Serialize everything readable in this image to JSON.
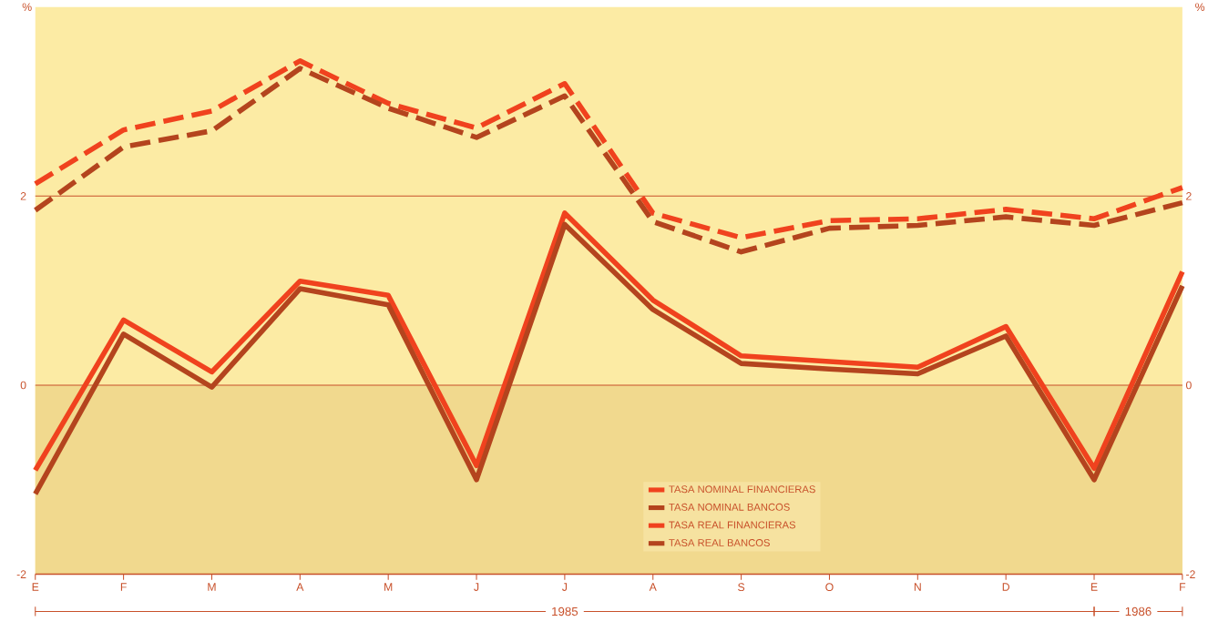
{
  "chart_data": {
    "type": "line",
    "ylabel": "%",
    "y2label": "%",
    "categories": [
      "E",
      "F",
      "M",
      "A",
      "M",
      "J",
      "J",
      "A",
      "S",
      "O",
      "N",
      "D",
      "E",
      "F"
    ],
    "series": [
      {
        "name": "TASA NOMINAL FINANCIERAS",
        "color": "#f0421e",
        "line_style": "dashed",
        "values": [
          2.13,
          2.7,
          2.9,
          3.43,
          2.98,
          2.72,
          3.19,
          1.82,
          1.56,
          1.74,
          1.76,
          1.86,
          1.76,
          2.09
        ]
      },
      {
        "name": "TASA NOMINAL BANCOS",
        "color": "#b4441e",
        "line_style": "dashed",
        "values": [
          1.85,
          2.52,
          2.69,
          3.35,
          2.93,
          2.62,
          3.06,
          1.73,
          1.41,
          1.66,
          1.69,
          1.78,
          1.69,
          1.93
        ]
      },
      {
        "name": "TASA REAL FINANCIERAS",
        "color": "#f0421e",
        "line_style": "solid",
        "values": [
          -0.9,
          0.69,
          0.14,
          1.1,
          0.95,
          -0.85,
          1.82,
          0.9,
          0.31,
          0.25,
          0.19,
          0.62,
          -0.88,
          1.2
        ]
      },
      {
        "name": "TASA REAL BANCOS",
        "color": "#b4441e",
        "line_style": "solid",
        "values": [
          -1.15,
          0.54,
          -0.02,
          1.02,
          0.85,
          -1.0,
          1.7,
          0.8,
          0.23,
          0.17,
          0.12,
          0.52,
          -1.0,
          1.05
        ]
      }
    ],
    "ylim": [
      -2,
      4
    ],
    "yticks": [
      -2,
      0,
      2
    ],
    "y2lim": [
      -2,
      4
    ],
    "y2ticks": [
      -2,
      0,
      2
    ],
    "ref_lines": [
      {
        "axis": "y",
        "value": 2,
        "color": "#c8502a"
      },
      {
        "axis": "y",
        "value": 0,
        "color": "#c8502a"
      }
    ],
    "bands": [
      {
        "axis": "y",
        "from": -2,
        "to": 0,
        "color": "#f1d98e"
      }
    ],
    "legend": "bottom",
    "marker": "none",
    "annotations": [
      "1985",
      "1986"
    ]
  }
}
